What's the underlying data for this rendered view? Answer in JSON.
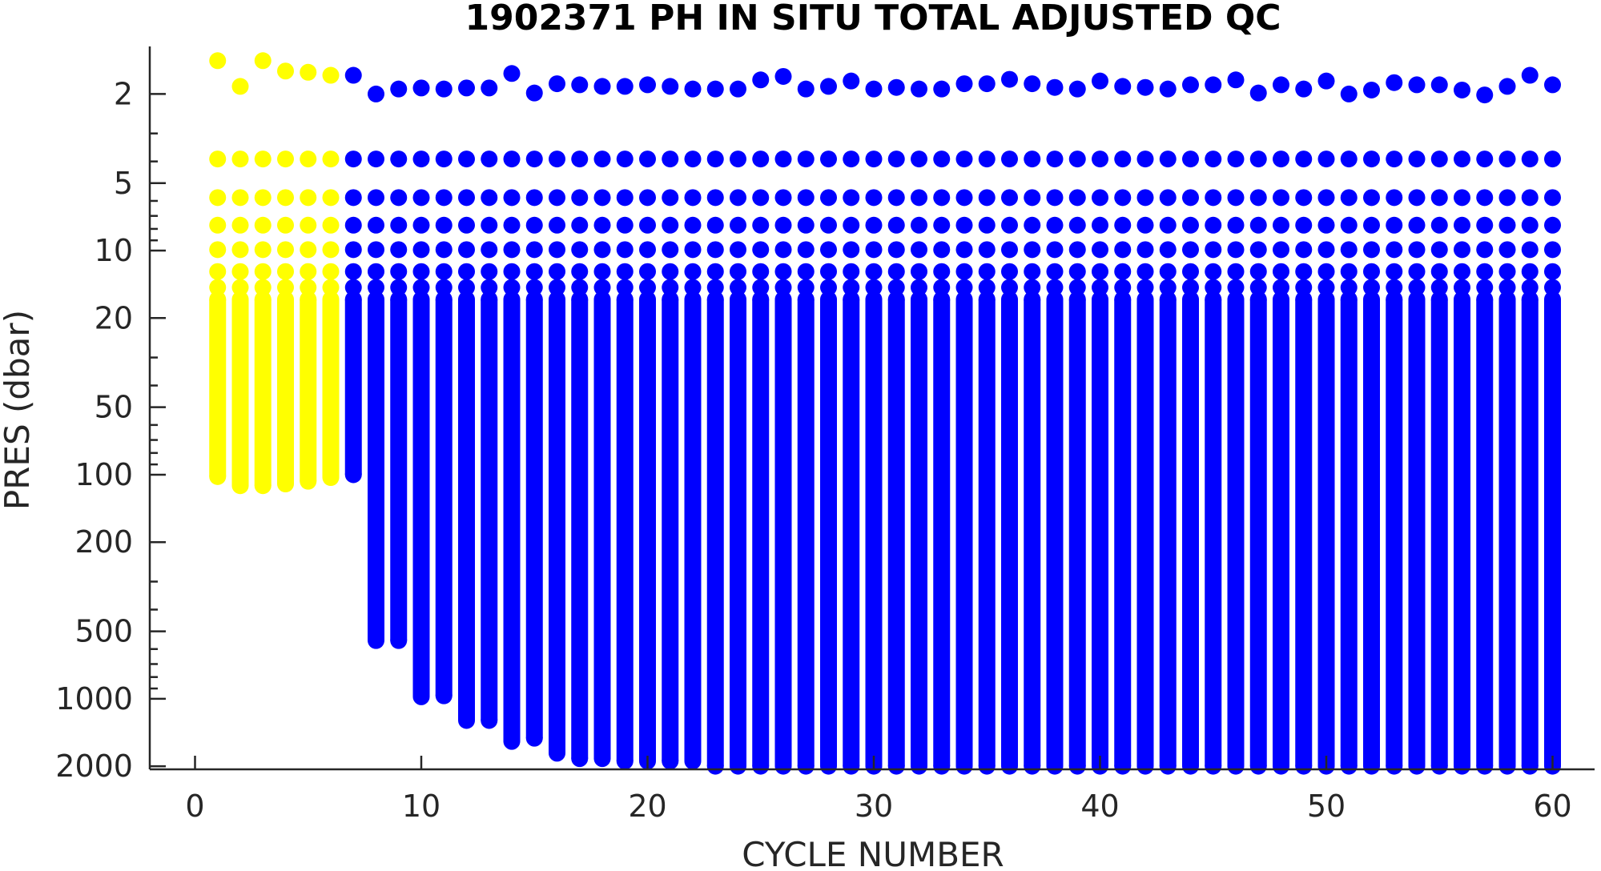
{
  "chart_data": {
    "type": "scatter",
    "title": "1902371  PH IN SITU TOTAL ADJUSTED QC",
    "xlabel": "CYCLE NUMBER",
    "ylabel": "PRES (dbar)",
    "xlim": [
      -2,
      62
    ],
    "ylim": [
      1.3,
      2150
    ],
    "y_scale": "log",
    "y_reversed": true,
    "grid": false,
    "legend": "none",
    "x_ticks": [
      0,
      10,
      20,
      30,
      40,
      50,
      60
    ],
    "y_ticks": [
      2,
      5,
      10,
      20,
      50,
      100,
      200,
      500,
      1000,
      2000
    ],
    "series": [
      {
        "qc_flag": "3",
        "color": "#ffff00",
        "cycles": [
          1,
          2,
          3,
          4,
          5,
          6
        ],
        "surface_pres": [
          1.42,
          1.85,
          1.42,
          1.58,
          1.6,
          1.65
        ],
        "max_pres": [
          102,
          112,
          112,
          110,
          107,
          103
        ]
      },
      {
        "qc_flag": "1",
        "color": "#0000ff",
        "cycles": [
          7,
          8,
          9,
          10,
          11,
          12,
          13,
          14,
          15,
          16,
          17,
          18,
          19,
          20,
          21,
          22,
          23,
          24,
          25,
          26,
          27,
          28,
          29,
          30,
          31,
          32,
          33,
          34,
          35,
          36,
          37,
          38,
          39,
          40,
          41,
          42,
          43,
          44,
          45,
          46,
          47,
          48,
          49,
          50,
          51,
          52,
          53,
          54,
          55,
          56,
          57,
          58,
          59,
          60
        ],
        "surface_pres": [
          1.65,
          2.0,
          1.9,
          1.88,
          1.9,
          1.88,
          1.88,
          1.62,
          1.98,
          1.8,
          1.82,
          1.85,
          1.85,
          1.82,
          1.85,
          1.9,
          1.9,
          1.9,
          1.73,
          1.67,
          1.9,
          1.85,
          1.75,
          1.9,
          1.87,
          1.9,
          1.9,
          1.8,
          1.8,
          1.72,
          1.8,
          1.87,
          1.9,
          1.75,
          1.85,
          1.87,
          1.9,
          1.82,
          1.82,
          1.73,
          1.98,
          1.82,
          1.9,
          1.75,
          2.0,
          1.92,
          1.78,
          1.82,
          1.82,
          1.92,
          2.02,
          1.85,
          1.65,
          1.82
        ],
        "max_pres": [
          100,
          550,
          550,
          980,
          970,
          1250,
          1250,
          1550,
          1500,
          1750,
          1850,
          1850,
          1900,
          1900,
          1900,
          1900,
          2000,
          2000,
          2000,
          2000,
          2000,
          2000,
          2000,
          2000,
          2000,
          2000,
          2000,
          2000,
          2000,
          2000,
          2000,
          2000,
          2000,
          2000,
          2000,
          2000,
          2000,
          2000,
          2000,
          2000,
          2000,
          2000,
          2000,
          2000,
          2000,
          2000,
          2000,
          2000,
          2000,
          2000,
          2000,
          2000,
          2000,
          2000
        ]
      }
    ],
    "upper_levels_pres": [
      3.9,
      5.8,
      7.7,
      9.9,
      12.4,
      14.6
    ]
  }
}
